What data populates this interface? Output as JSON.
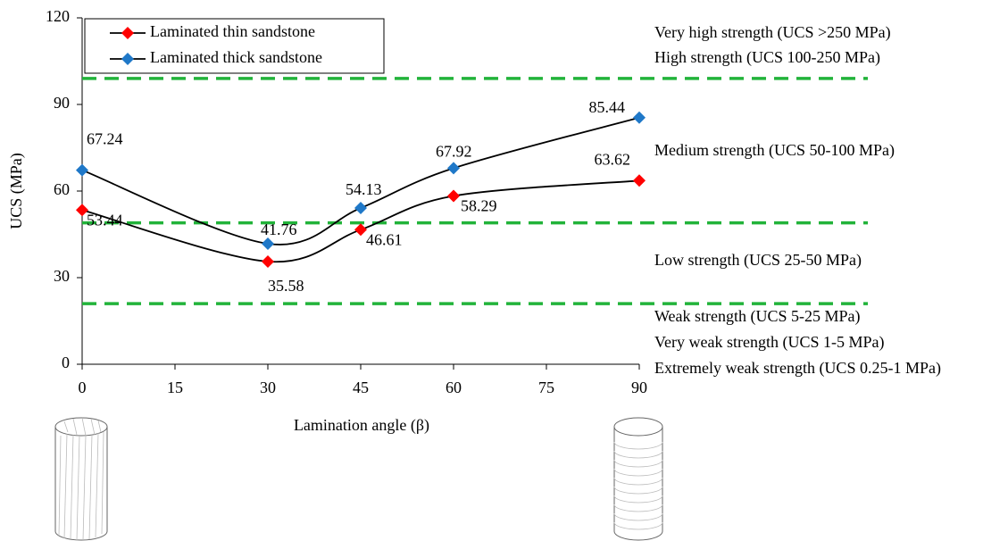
{
  "chart_data": {
    "type": "line",
    "x_label": "Lamination angle (β)",
    "y_label": "UCS (MPa)",
    "x": [
      0,
      30,
      45,
      60,
      90
    ],
    "xlim": [
      0,
      90
    ],
    "xticks": [
      0,
      15,
      30,
      45,
      60,
      75,
      90
    ],
    "ylim": [
      0,
      120
    ],
    "yticks": [
      0,
      30,
      60,
      90,
      120
    ],
    "grid": false,
    "legend": "upper left",
    "series": [
      {
        "name": "Laminated thin sandstone",
        "color": "#ff0000",
        "values": [
          53.44,
          35.58,
          46.61,
          58.29,
          63.62
        ]
      },
      {
        "name": "Laminated thick sandstone",
        "color": "#1f78c8",
        "values": [
          67.24,
          41.76,
          54.13,
          67.92,
          85.44
        ]
      }
    ],
    "thresholds": {
      "color": "#22b33a",
      "values": [
        99,
        49,
        21
      ]
    },
    "strength_classes": [
      "Very high strength (UCS >250 MPa)",
      "High strength (UCS 100-250 MPa)",
      "Medium strength (UCS 50-100 MPa)",
      "Low strength (UCS 25-50 MPa)",
      "Weak strength (UCS 5-25 MPa)",
      "Very weak strength (UCS 1-5 MPa)",
      "Extremely weak strength (UCS 0.25-1 MPa)"
    ]
  }
}
